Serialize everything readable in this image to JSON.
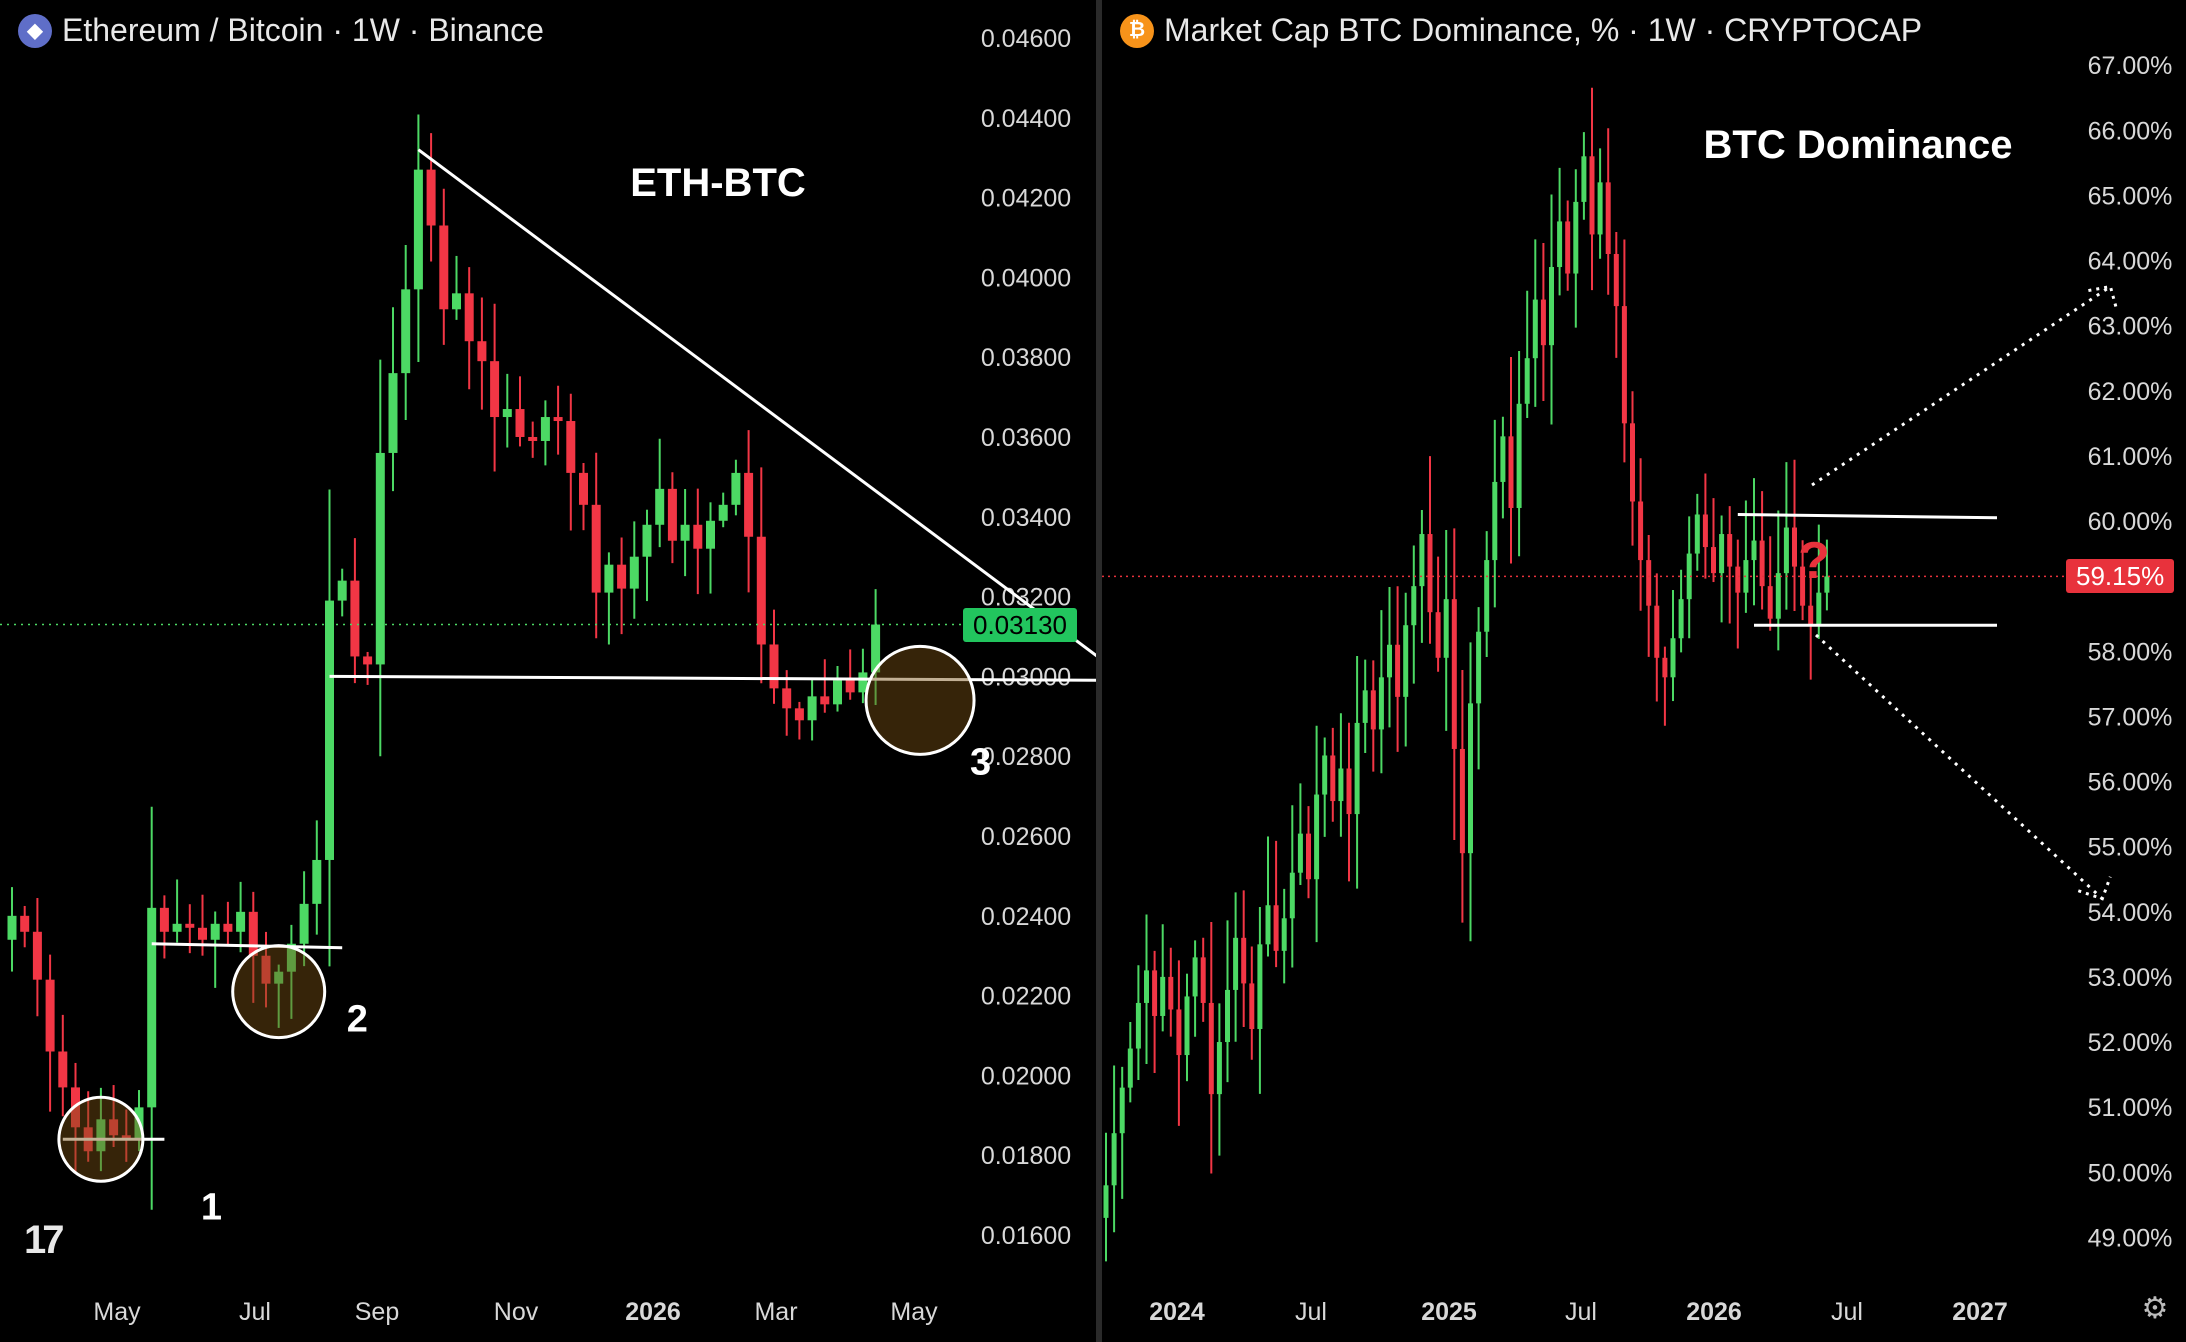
{
  "left": {
    "header": {
      "title": "Ethereum / Bitcoin · 1W · Binance",
      "icon": "ethereum-icon"
    },
    "annotation": "ETH-BTC",
    "markers": [
      "1",
      "2",
      "3"
    ],
    "last_price": "0.03130",
    "colors": {
      "up": "#4cd964",
      "down": "#f23645",
      "last_price": "#22c55e"
    },
    "logo": "tradingview-logo-icon"
  },
  "right": {
    "header": {
      "title": "Market Cap BTC Dominance, % · 1W · CRYPTOCAP",
      "icon": "bitcoin-icon"
    },
    "annotation": "BTC Dominance",
    "question_mark": "?",
    "last_price": "59.15%",
    "colors": {
      "up": "#4cd964",
      "down": "#f23645",
      "last_price": "#e8323c"
    },
    "settings": "gear-icon"
  },
  "chart_data": [
    {
      "type": "candlestick",
      "title": "Ethereum / Bitcoin · 1W · Binance",
      "y_ticks": [
        "0.04600",
        "0.04400",
        "0.04200",
        "0.04000",
        "0.03800",
        "0.03600",
        "0.03400",
        "0.03200",
        "0.03000",
        "0.02800",
        "0.02600",
        "0.02400",
        "0.02200",
        "0.02000",
        "0.01800",
        "0.01600"
      ],
      "x_ticks": [
        "May",
        "Jul",
        "Sep",
        "Nov",
        "2026",
        "Mar",
        "May"
      ],
      "ylim": [
        0.0155,
        0.0465
      ],
      "last_value": 0.0313,
      "close_series": [
        0.024,
        0.0236,
        0.0224,
        0.0206,
        0.0197,
        0.0187,
        0.0181,
        0.0189,
        0.0185,
        0.0184,
        0.0192,
        0.0242,
        0.0236,
        0.0238,
        0.0237,
        0.0234,
        0.0238,
        0.0236,
        0.0241,
        0.023,
        0.0223,
        0.0226,
        0.0233,
        0.0243,
        0.0254,
        0.0319,
        0.0324,
        0.0305,
        0.0303,
        0.0356,
        0.0376,
        0.0397,
        0.0427,
        0.0413,
        0.0392,
        0.0396,
        0.0384,
        0.0379,
        0.0365,
        0.0367,
        0.036,
        0.0359,
        0.0365,
        0.0364,
        0.0351,
        0.0343,
        0.0321,
        0.0328,
        0.0322,
        0.033,
        0.0338,
        0.0347,
        0.0334,
        0.0338,
        0.0332,
        0.0339,
        0.0343,
        0.0351,
        0.0335,
        0.0308,
        0.0297,
        0.0292,
        0.0289,
        0.0295,
        0.0293,
        0.0299,
        0.0296,
        0.0301,
        0.0313
      ],
      "annotations": {
        "descending_trendline": {
          "from": [
            32,
            0.0432
          ],
          "to": [
            88,
            0.0299
          ]
        },
        "support_line": {
          "from": [
            25,
            0.03
          ],
          "to": [
            88,
            0.0299
          ]
        },
        "range_line_2": {
          "from": [
            11,
            0.0233
          ],
          "to": [
            26,
            0.0232
          ]
        },
        "range_line_1": {
          "from": [
            4,
            0.0184
          ],
          "to": [
            12,
            0.0184
          ]
        },
        "circles": [
          {
            "label": "1",
            "x": 7,
            "y": 0.0184
          },
          {
            "label": "2",
            "x": 21,
            "y": 0.0221
          },
          {
            "label": "3",
            "x": 71.5,
            "y": 0.0294
          }
        ]
      }
    },
    {
      "type": "candlestick",
      "title": "Market Cap BTC Dominance, % · 1W · CRYPTOCAP",
      "y_ticks": [
        "67.00%",
        "66.00%",
        "65.00%",
        "64.00%",
        "63.00%",
        "62.00%",
        "61.00%",
        "60.00%",
        "58.00%",
        "57.00%",
        "56.00%",
        "55.00%",
        "54.00%",
        "53.00%",
        "52.00%",
        "51.00%",
        "50.00%",
        "49.00%"
      ],
      "x_ticks": [
        "2024",
        "Jul",
        "2025",
        "Jul",
        "2026",
        "Jul",
        "2027"
      ],
      "ylim": [
        48.3,
        68.0
      ],
      "last_value": 59.15,
      "close_series": [
        49.8,
        50.6,
        51.3,
        51.9,
        52.6,
        53.1,
        52.4,
        53.0,
        52.5,
        51.8,
        52.7,
        53.3,
        52.6,
        51.2,
        52.0,
        52.8,
        53.6,
        52.9,
        52.2,
        53.5,
        54.1,
        53.4,
        53.9,
        54.6,
        55.2,
        54.5,
        55.8,
        56.4,
        55.7,
        56.2,
        55.5,
        56.9,
        57.4,
        56.8,
        57.6,
        58.1,
        57.3,
        58.4,
        59.0,
        59.8,
        58.6,
        57.9,
        58.8,
        56.5,
        54.9,
        57.2,
        58.3,
        59.4,
        60.6,
        61.3,
        60.2,
        61.8,
        62.5,
        63.4,
        62.7,
        63.9,
        64.6,
        63.8,
        64.9,
        65.6,
        64.4,
        65.2,
        64.1,
        63.3,
        61.5,
        60.3,
        59.4,
        58.7,
        57.9,
        57.6,
        58.2,
        58.8,
        59.5,
        60.1,
        59.6,
        59.2,
        59.8,
        59.3,
        58.9,
        59.4,
        59.7,
        59.0,
        58.5,
        59.2,
        59.9,
        59.3,
        58.7,
        58.4,
        58.9,
        59.15
      ],
      "annotations": {
        "range_top": {
          "from": [
            78,
            60.1
          ],
          "to": [
            110,
            60.05
          ]
        },
        "range_bottom": {
          "from": [
            80,
            58.4
          ],
          "to": [
            110,
            58.4
          ]
        },
        "up_arrow_target": [
          124,
          63.6
        ],
        "down_arrow_target": [
          123,
          54.2
        ]
      }
    }
  ]
}
